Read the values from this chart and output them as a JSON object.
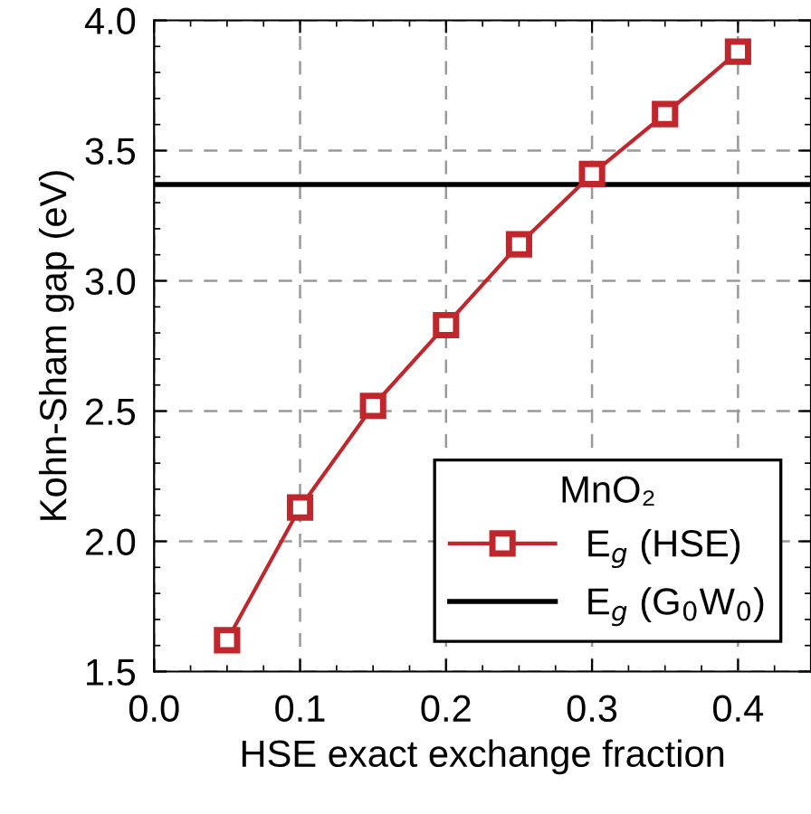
{
  "chart_data": {
    "type": "line",
    "xlabel": "HSE exact exchange fraction",
    "ylabel": "Kohn-Sham gap (eV)",
    "legend_title": "MnO₂",
    "x": [
      0.05,
      0.1,
      0.15,
      0.2,
      0.25,
      0.3,
      0.35,
      0.4
    ],
    "series": [
      {
        "name": "E$_{g}$ (HSE)",
        "color": "#c0272d",
        "values": [
          1.62,
          2.13,
          2.52,
          2.83,
          3.14,
          3.41,
          3.64,
          3.88
        ],
        "marker": "square"
      }
    ],
    "ref_lines": [
      {
        "axis": "y",
        "value": 3.37,
        "label": "E$_{g}$ (G$_{0}$W$_{0}$)",
        "color": "#000000"
      }
    ],
    "xlim": [
      0.0,
      0.45
    ],
    "ylim": [
      1.5,
      4.0
    ],
    "xticks": [
      {
        "value": 0.0,
        "label": "0.0"
      },
      0.1,
      0.2,
      0.3,
      0.4
    ],
    "yticks": [
      1.5,
      {
        "value": 2.0,
        "label": "2.0"
      },
      2.5,
      {
        "value": 3.0,
        "label": "3.0"
      },
      3.5,
      {
        "value": 4.0,
        "label": "4.0"
      }
    ],
    "grid": true,
    "legend": "bottom right",
    "line_style": "solid"
  }
}
